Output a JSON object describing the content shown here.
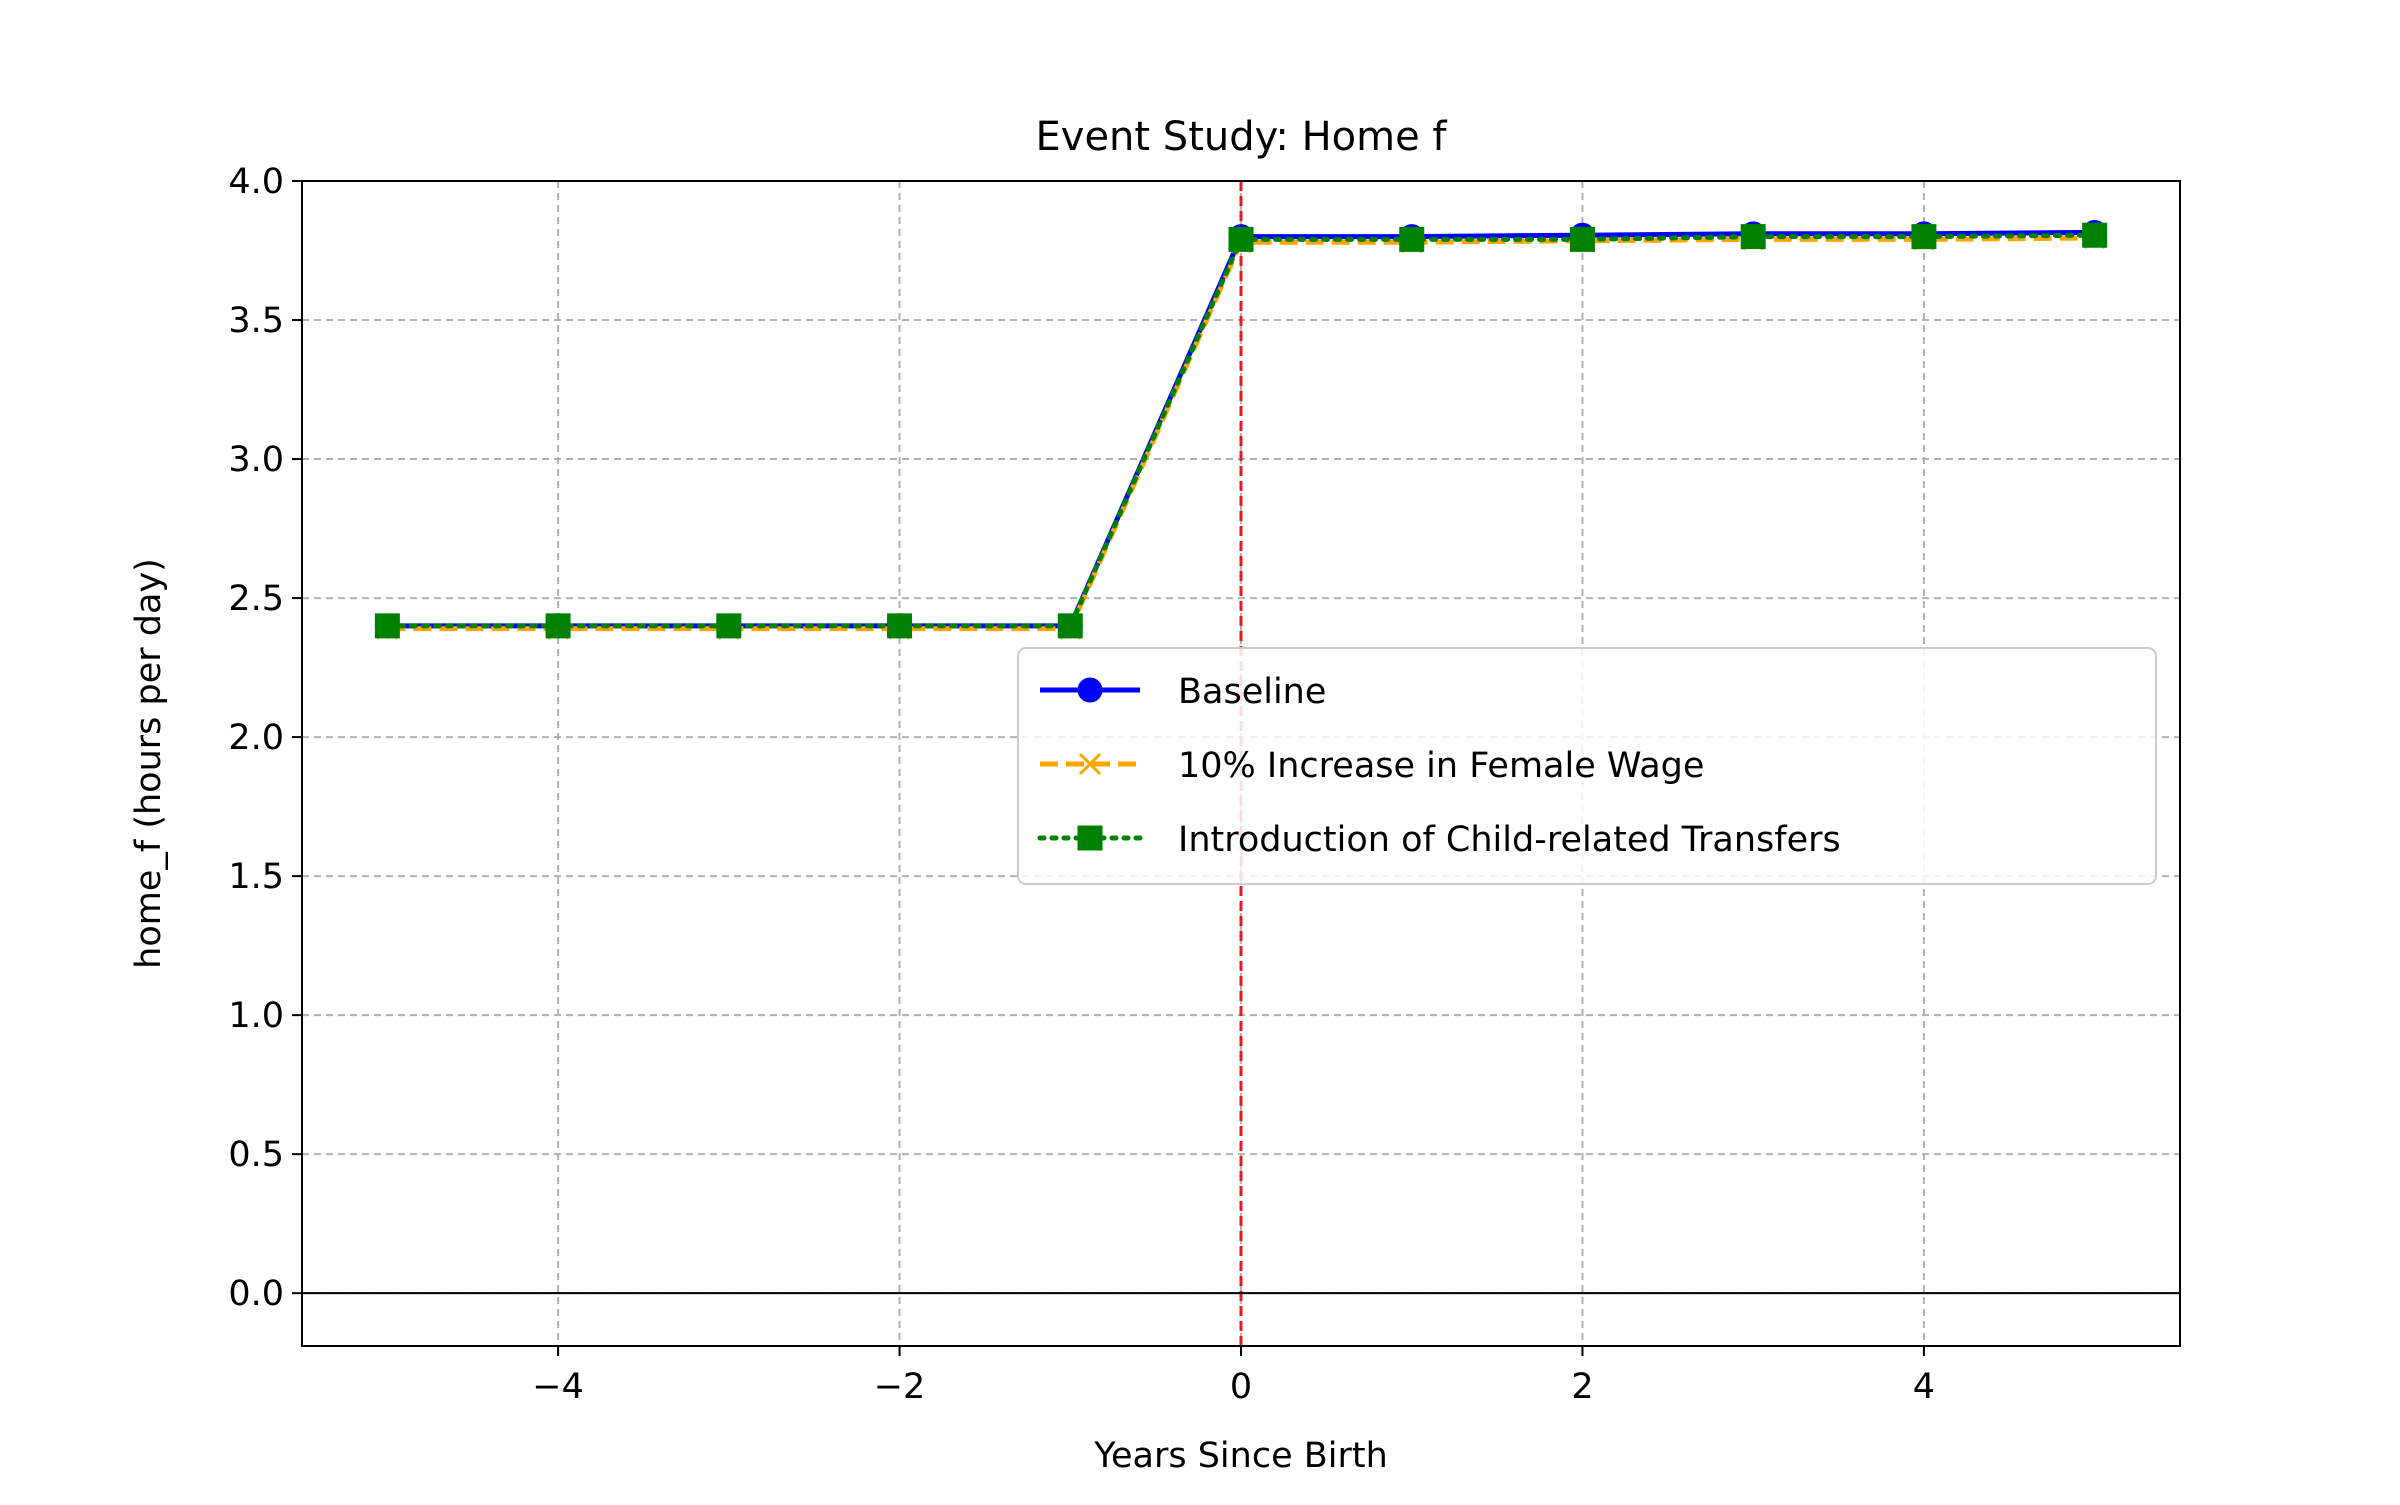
{
  "chart_data": {
    "type": "line",
    "title": "Event Study: Home f",
    "xlabel": "Years Since Birth",
    "ylabel": "home_f (hours per day)",
    "xlim": [
      -5.5,
      5.5
    ],
    "ylim": [
      -0.19,
      4.0
    ],
    "x_ticks": [
      -4,
      -2,
      0,
      2,
      4
    ],
    "x_tick_labels": [
      "−4",
      "−2",
      "0",
      "2",
      "4"
    ],
    "y_ticks": [
      0.0,
      0.5,
      1.0,
      1.5,
      2.0,
      2.5,
      3.0,
      3.5,
      4.0
    ],
    "y_tick_labels": [
      "0.0",
      "0.5",
      "1.0",
      "1.5",
      "2.0",
      "2.5",
      "3.0",
      "3.5",
      "4.0"
    ],
    "grid": true,
    "legend_position": "center-right",
    "reference_lines": [
      {
        "orientation": "vertical",
        "value": 0,
        "color": "#e41a1c",
        "style": "dashed"
      },
      {
        "orientation": "horizontal",
        "value": 0,
        "color": "#000000",
        "style": "solid"
      }
    ],
    "x": [
      -5,
      -4,
      -3,
      -2,
      -1,
      0,
      1,
      2,
      3,
      4,
      5
    ],
    "series": [
      {
        "name": "Baseline",
        "color": "#0000ff",
        "line_style": "solid",
        "marker": "circle",
        "values": [
          2.4,
          2.4,
          2.4,
          2.4,
          2.4,
          3.8,
          3.8,
          3.805,
          3.81,
          3.81,
          3.815
        ]
      },
      {
        "name": "10% Increase in Female Wage",
        "color": "#ffa500",
        "line_style": "dashed",
        "marker": "x",
        "values": [
          2.39,
          2.39,
          2.39,
          2.39,
          2.39,
          3.78,
          3.78,
          3.785,
          3.79,
          3.79,
          3.795
        ]
      },
      {
        "name": "Introduction of Child-related Transfers",
        "color": "#008000",
        "line_style": "dotted",
        "marker": "square",
        "values": [
          2.4,
          2.4,
          2.4,
          2.4,
          2.4,
          3.79,
          3.79,
          3.79,
          3.8,
          3.8,
          3.805
        ]
      }
    ]
  }
}
